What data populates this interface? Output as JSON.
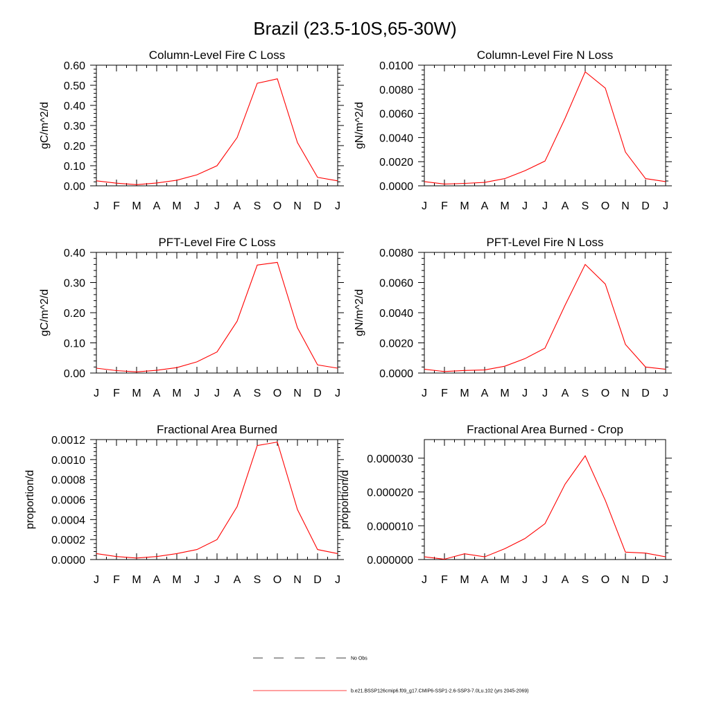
{
  "title": "Brazil (23.5-10S,65-30W)",
  "chart_data": [
    {
      "type": "line",
      "title": "Column-Level Fire C Loss",
      "ylabel": "gC/m^2/d",
      "x": [
        "J",
        "F",
        "M",
        "A",
        "M",
        "J",
        "J",
        "A",
        "S",
        "O",
        "N",
        "D",
        "J"
      ],
      "ylim": [
        0,
        0.6
      ],
      "yticks": [
        "0.00",
        "0.10",
        "0.20",
        "0.30",
        "0.40",
        "0.50",
        "0.60"
      ],
      "series": [
        {
          "values": [
            0.025,
            0.013,
            0.006,
            0.014,
            0.028,
            0.055,
            0.1,
            0.24,
            0.51,
            0.532,
            0.215,
            0.042,
            0.025
          ]
        }
      ]
    },
    {
      "type": "line",
      "title": "Column-Level Fire N Loss",
      "ylabel": "gN/m^2/d",
      "x": [
        "J",
        "F",
        "M",
        "A",
        "M",
        "J",
        "J",
        "A",
        "S",
        "O",
        "N",
        "D",
        "J"
      ],
      "ylim": [
        0,
        0.01
      ],
      "yticks": [
        "0.0000",
        "0.0020",
        "0.0040",
        "0.0060",
        "0.0080",
        "0.0100"
      ],
      "series": [
        {
          "values": [
            0.00035,
            0.00015,
            0.0002,
            0.00028,
            0.0006,
            0.00125,
            0.00205,
            0.0056,
            0.00945,
            0.0081,
            0.0028,
            0.0006,
            0.00035
          ]
        }
      ]
    },
    {
      "type": "line",
      "title": "PFT-Level Fire C Loss",
      "ylabel": "gC/m^2/d",
      "x": [
        "J",
        "F",
        "M",
        "A",
        "M",
        "J",
        "J",
        "A",
        "S",
        "O",
        "N",
        "D",
        "J"
      ],
      "ylim": [
        0,
        0.4
      ],
      "yticks": [
        "0.00",
        "0.10",
        "0.20",
        "0.30",
        "0.40"
      ],
      "series": [
        {
          "values": [
            0.016,
            0.008,
            0.004,
            0.009,
            0.018,
            0.037,
            0.07,
            0.172,
            0.358,
            0.367,
            0.15,
            0.027,
            0.016
          ]
        }
      ]
    },
    {
      "type": "line",
      "title": "PFT-Level Fire N Loss",
      "ylabel": "gN/m^2/d",
      "x": [
        "J",
        "F",
        "M",
        "A",
        "M",
        "J",
        "J",
        "A",
        "S",
        "O",
        "N",
        "D",
        "J"
      ],
      "ylim": [
        0,
        0.008
      ],
      "yticks": [
        "0.0000",
        "0.0020",
        "0.0040",
        "0.0060",
        "0.0080"
      ],
      "series": [
        {
          "values": [
            0.00025,
            0.0001,
            0.00017,
            0.0002,
            0.00045,
            0.00095,
            0.00165,
            0.0045,
            0.0072,
            0.0059,
            0.0019,
            0.0004,
            0.00025
          ]
        }
      ]
    },
    {
      "type": "line",
      "title": "Fractional Area Burned",
      "ylabel": "proportion/d",
      "x": [
        "J",
        "F",
        "M",
        "A",
        "M",
        "J",
        "J",
        "A",
        "S",
        "O",
        "N",
        "D",
        "J"
      ],
      "ylim": [
        0,
        0.0012
      ],
      "yticks": [
        "0.0000",
        "0.0002",
        "0.0004",
        "0.0006",
        "0.0008",
        "0.0010",
        "0.0012"
      ],
      "series": [
        {
          "values": [
            6e-05,
            3e-05,
            1.5e-05,
            3e-05,
            6e-05,
            0.0001,
            0.0002,
            0.00053,
            0.00114,
            0.001175,
            0.0005,
            0.0001,
            6e-05
          ]
        }
      ]
    },
    {
      "type": "line",
      "title": "Fractional Area Burned - Crop",
      "ylabel": "proportion/d",
      "x": [
        "J",
        "F",
        "M",
        "A",
        "M",
        "J",
        "J",
        "A",
        "S",
        "O",
        "N",
        "D",
        "J"
      ],
      "ylim": [
        0,
        3.55e-05
      ],
      "yticks": [
        "0.000000",
        "0.000010",
        "0.000020",
        "0.000030"
      ],
      "yticks_values": [
        0,
        1e-05,
        2e-05,
        3e-05
      ],
      "series": [
        {
          "values": [
            8e-07,
            1e-07,
            1.7e-06,
            8e-07,
            3.2e-06,
            6.2e-06,
            1.06e-05,
            2.23e-05,
            3.07e-05,
            1.75e-05,
            2.2e-06,
            1.9e-06,
            8e-07
          ]
        }
      ]
    }
  ],
  "legend": {
    "obs_label": "No Obs",
    "model_label": "b.e21.BSSP126cmip6.f09_g17.CMIP6-SSP1-2.6-SSP3-7.0Lu.102 (yrs 2045-2069)",
    "model_color": "#ff0000"
  }
}
